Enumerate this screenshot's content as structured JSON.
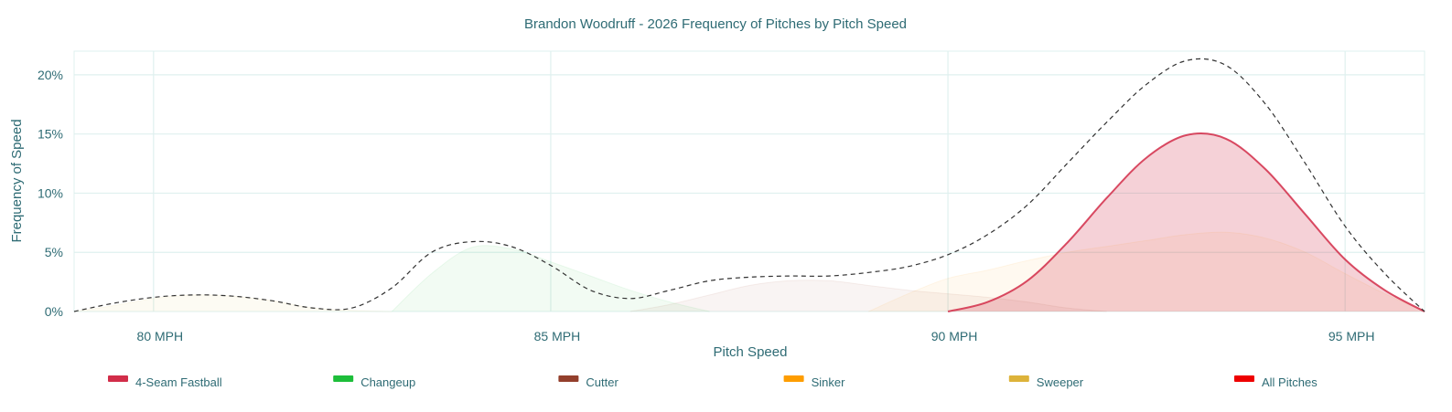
{
  "chart_data": {
    "type": "area",
    "title": "Brandon Woodruff - 2026 Frequency of Pitches by Pitch Speed",
    "xlabel": "Pitch Speed",
    "ylabel": "Frequency of Speed",
    "x_unit_label": "MPH",
    "xlim": [
      79,
      96
    ],
    "ylim": [
      0,
      22
    ],
    "x_ticks": [
      80,
      85,
      90,
      95
    ],
    "x_tick_labels": [
      "80 MPH",
      "85 MPH",
      "90 MPH",
      "95 MPH"
    ],
    "y_ticks": [
      0,
      5,
      10,
      15,
      20
    ],
    "y_tick_labels": [
      "0%",
      "5%",
      "10%",
      "15%",
      "20%"
    ],
    "grid": true,
    "legend_position": "bottom",
    "series": [
      {
        "name": "4-Seam Fastball",
        "color": "#d22d49",
        "style": "area",
        "x": [
          90,
          90.5,
          91,
          91.5,
          92,
          92.5,
          93,
          93.5,
          94,
          94.5,
          95,
          95.5,
          96
        ],
        "values": [
          0,
          0.8,
          2.6,
          5.8,
          9.6,
          13.0,
          14.9,
          14.6,
          12.0,
          8.2,
          4.4,
          1.8,
          0
        ]
      },
      {
        "name": "Changeup",
        "color": "#1dbe3a",
        "style": "area",
        "x": [
          83,
          83.5,
          84,
          84.5,
          85,
          85.5,
          86,
          86.5,
          87
        ],
        "values": [
          0,
          3.2,
          5.4,
          5.3,
          4.2,
          3.0,
          1.8,
          0.8,
          0
        ]
      },
      {
        "name": "Cutter",
        "color": "#933f2c",
        "style": "area",
        "x": [
          86,
          86.5,
          87,
          87.5,
          88,
          88.5,
          89,
          89.5,
          90,
          90.5,
          91,
          91.5,
          92
        ],
        "values": [
          0,
          0.6,
          1.4,
          2.2,
          2.6,
          2.6,
          2.2,
          1.8,
          1.5,
          1.2,
          0.8,
          0.3,
          0
        ]
      },
      {
        "name": "Sinker",
        "color": "#fe9d00",
        "style": "area",
        "x": [
          89,
          89.5,
          90,
          90.5,
          91,
          91.5,
          92,
          92.5,
          93,
          93.5,
          94,
          94.5,
          95,
          95.5,
          96
        ],
        "values": [
          0,
          1.5,
          2.8,
          3.5,
          4.3,
          5.0,
          5.5,
          6.0,
          6.5,
          6.7,
          6.2,
          5.0,
          3.2,
          1.5,
          0
        ]
      },
      {
        "name": "Sweeper",
        "color": "#ddb33a",
        "style": "area",
        "x": [
          79,
          79.5,
          80,
          80.5,
          81,
          81.5,
          82,
          82.5,
          83
        ],
        "values": [
          0,
          0.5,
          1.1,
          1.4,
          1.3,
          0.9,
          0.3,
          0.1,
          0
        ]
      },
      {
        "name": "All Pitches",
        "color": "#333333",
        "legend_color": "#ee0000",
        "style": "dashed-line",
        "x": [
          79,
          79.5,
          80,
          80.5,
          81,
          81.5,
          82,
          82.5,
          83,
          83.5,
          84,
          84.5,
          85,
          85.5,
          86,
          86.5,
          87,
          87.5,
          88,
          88.5,
          89,
          89.5,
          90,
          90.5,
          91,
          91.5,
          92,
          92.5,
          93,
          93.5,
          94,
          94.5,
          95,
          95.5,
          96
        ],
        "values": [
          0,
          0.7,
          1.2,
          1.4,
          1.3,
          0.9,
          0.3,
          0.3,
          2.0,
          5.0,
          5.9,
          5.5,
          3.9,
          1.8,
          1.1,
          1.8,
          2.6,
          2.9,
          3.0,
          3.0,
          3.3,
          3.8,
          4.8,
          6.5,
          9.0,
          12.5,
          16.0,
          19.2,
          21.2,
          20.8,
          17.5,
          12.5,
          7.2,
          3.2,
          0
        ]
      }
    ]
  }
}
